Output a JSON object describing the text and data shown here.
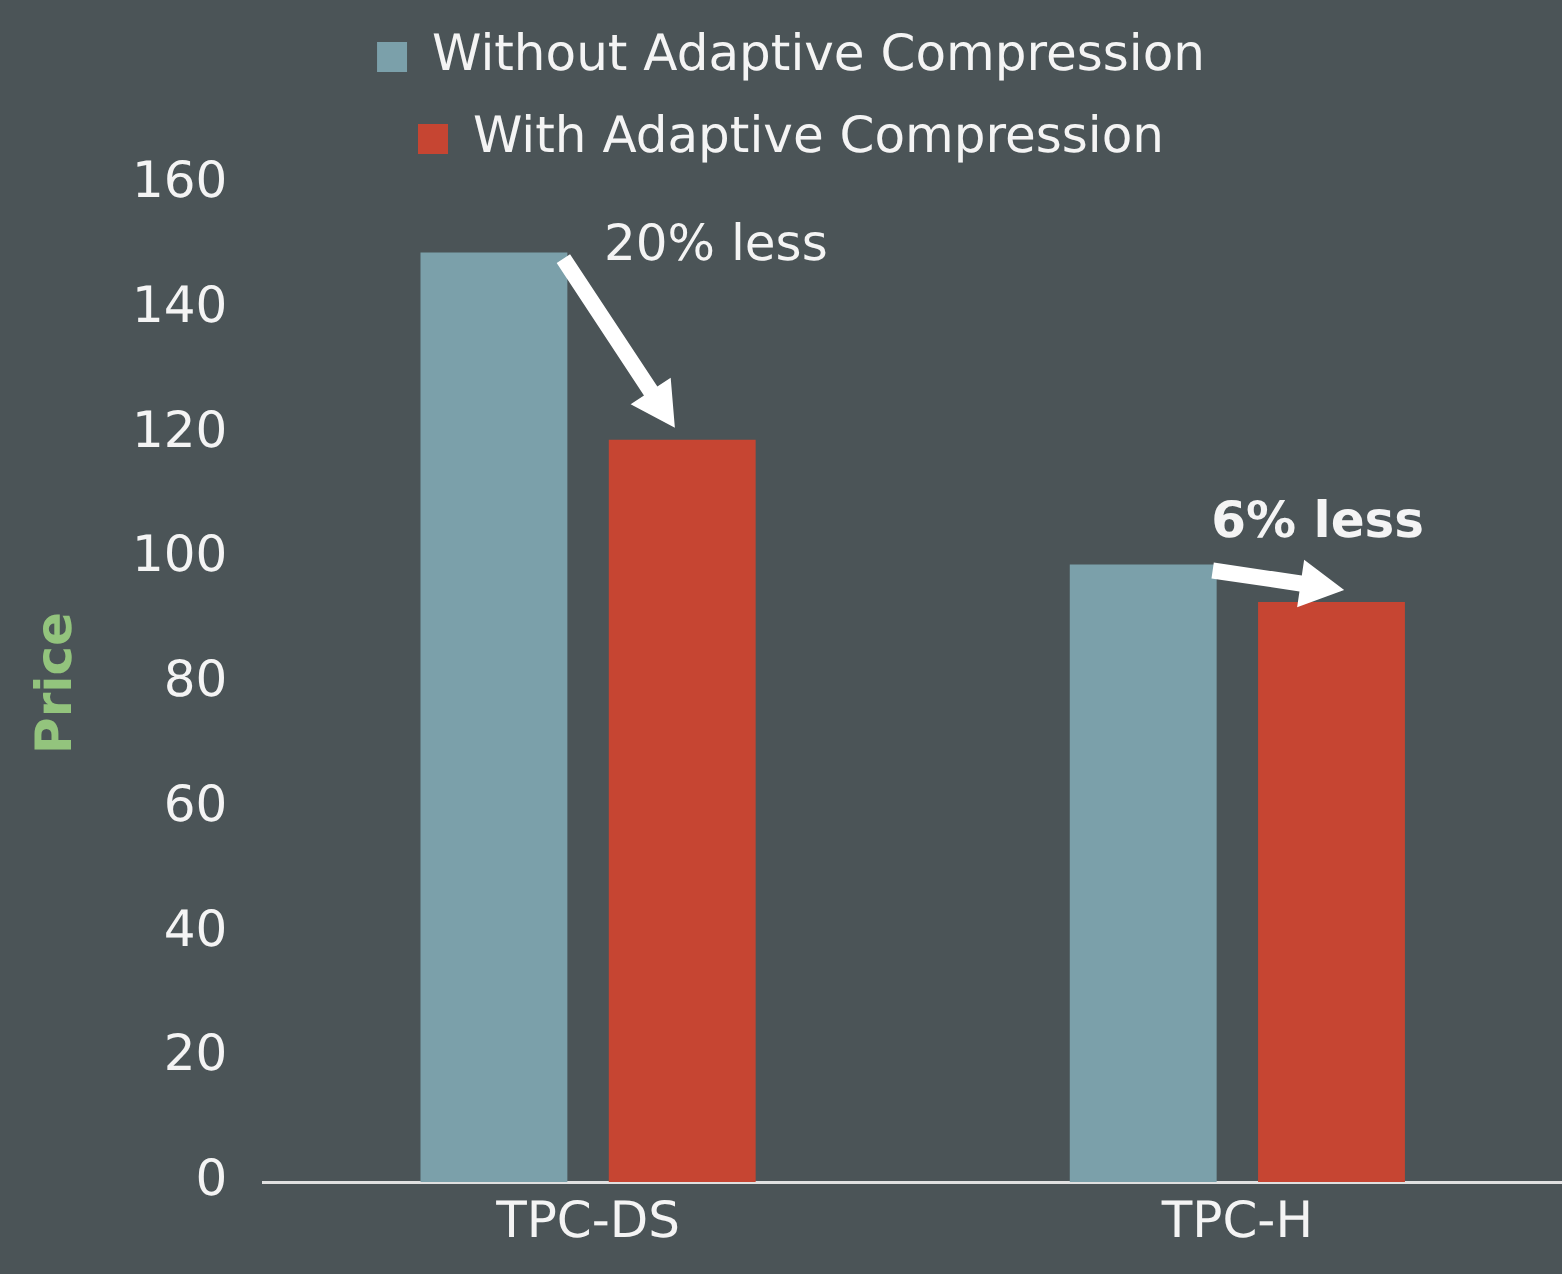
{
  "chart_data": {
    "type": "bar",
    "ylabel": "Price",
    "categories": [
      "TPC-DS",
      "TPC-H"
    ],
    "series": [
      {
        "name": "Without Adaptive Compression",
        "color": "#7ba0aa",
        "values": [
          149,
          99
        ]
      },
      {
        "name": "With Adaptive Compression",
        "color": "#c64532",
        "values": [
          119,
          93
        ]
      }
    ],
    "ylim": [
      0,
      160
    ],
    "yticks": [
      0,
      20,
      40,
      60,
      80,
      100,
      120,
      140,
      160
    ],
    "grid": false,
    "legend": "top",
    "annotations": [
      "20% less",
      "6% less"
    ]
  }
}
